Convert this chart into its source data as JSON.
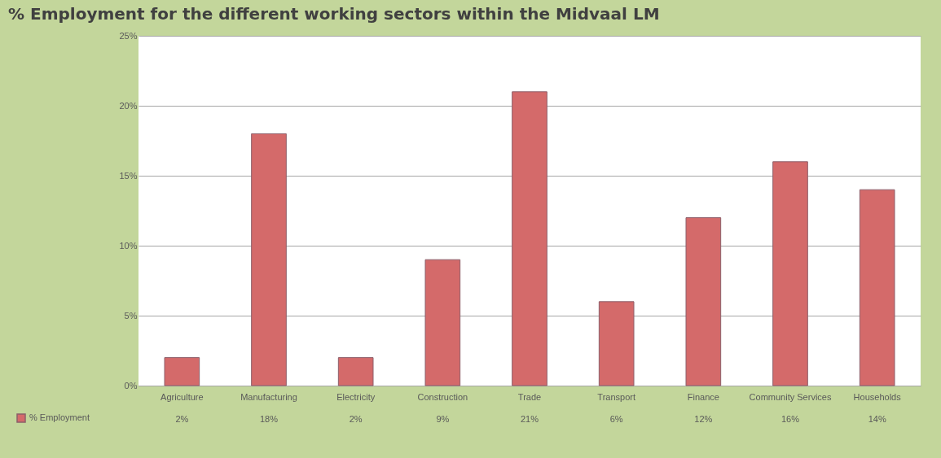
{
  "chart_data": {
    "type": "bar",
    "title": "% Employment for the different working sectors within the Midvaal LM",
    "categories": [
      "Agriculture",
      "Manufacturing",
      "Electricity",
      "Construction",
      "Trade",
      "Transport",
      "Finance",
      "Community Services",
      "Households"
    ],
    "series": [
      {
        "name": "% Employment",
        "color": "#d46a6a",
        "values": [
          2,
          18,
          2,
          9,
          21,
          6,
          12,
          16,
          14
        ],
        "value_labels": [
          "2%",
          "18%",
          "2%",
          "9%",
          "21%",
          "6%",
          "12%",
          "16%",
          "14%"
        ]
      }
    ],
    "ylim": [
      0,
      25
    ],
    "yticks": [
      {
        "value": 0,
        "label": "0%"
      },
      {
        "value": 5,
        "label": "5%"
      },
      {
        "value": 10,
        "label": "10%"
      },
      {
        "value": 15,
        "label": "15%"
      },
      {
        "value": 20,
        "label": "20%"
      },
      {
        "value": 25,
        "label": "25%"
      }
    ],
    "grid": "y",
    "legend": "bottom left"
  }
}
